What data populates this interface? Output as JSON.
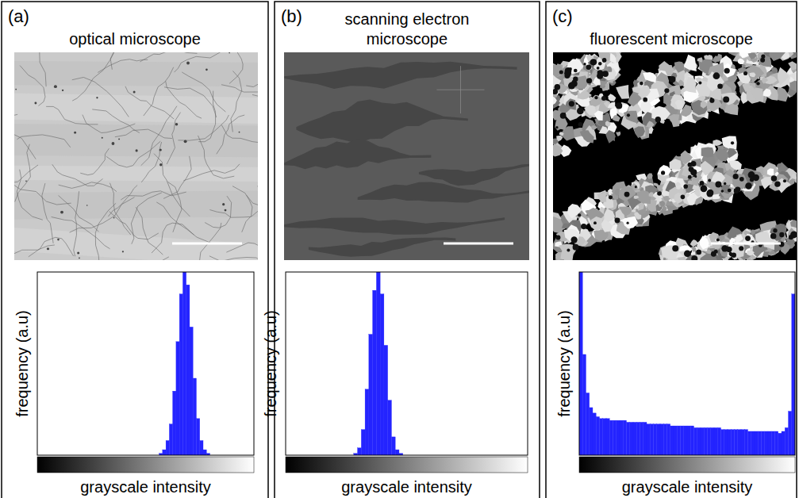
{
  "chart_data": [
    {
      "type": "histogram",
      "panel": "(a)",
      "title": "optical microscope",
      "xlabel": "grayscale intensity",
      "ylabel": "frequency (a.u)",
      "bins": [
        0,
        4,
        8,
        12,
        16,
        20,
        24,
        28,
        32,
        36,
        40,
        44,
        48,
        52,
        56,
        60,
        64,
        68,
        72,
        76,
        80,
        84,
        88,
        92,
        96,
        100,
        104,
        108,
        112,
        116,
        120,
        124,
        128,
        132,
        136,
        140,
        144,
        148,
        152,
        156,
        160,
        164,
        168,
        172,
        176,
        180,
        184,
        188,
        192,
        196,
        200,
        204,
        208,
        212,
        216,
        220,
        224,
        228,
        232,
        236,
        240,
        244,
        248,
        252,
        256
      ],
      "counts": [
        0,
        0,
        0,
        0,
        0,
        0,
        0,
        0,
        0,
        0,
        0,
        0,
        0,
        0,
        0,
        0,
        0,
        0,
        0,
        0,
        0,
        0,
        0,
        0,
        0,
        0,
        0,
        0,
        0,
        0,
        0,
        0,
        0,
        0,
        0,
        0,
        0.01,
        0.03,
        0.08,
        0.17,
        0.35,
        0.62,
        0.88,
        1.0,
        0.93,
        0.7,
        0.42,
        0.2,
        0.08,
        0.03,
        0.01,
        0,
        0,
        0,
        0,
        0,
        0,
        0,
        0,
        0,
        0,
        0,
        0,
        0
      ],
      "color": "#2424ff",
      "xlim": [
        0,
        256
      ],
      "ylim": [
        0,
        1
      ],
      "tick_labels": false
    },
    {
      "type": "histogram",
      "panel": "(b)",
      "title": "scanning electron microscope",
      "xlabel": "grayscale intensity",
      "ylabel": "frequency (a.u)",
      "bins": [
        0,
        4,
        8,
        12,
        16,
        20,
        24,
        28,
        32,
        36,
        40,
        44,
        48,
        52,
        56,
        60,
        64,
        68,
        72,
        76,
        80,
        84,
        88,
        92,
        96,
        100,
        104,
        108,
        112,
        116,
        120,
        124,
        128,
        132,
        136,
        140,
        144,
        148,
        152,
        156,
        160,
        164,
        168,
        172,
        176,
        180,
        184,
        188,
        192,
        196,
        200,
        204,
        208,
        212,
        216,
        220,
        224,
        228,
        232,
        236,
        240,
        244,
        248,
        252,
        256
      ],
      "counts": [
        0,
        0,
        0,
        0,
        0,
        0,
        0,
        0,
        0,
        0,
        0,
        0,
        0,
        0,
        0,
        0,
        0,
        0,
        0.01,
        0.04,
        0.14,
        0.36,
        0.66,
        0.9,
        1.0,
        0.88,
        0.6,
        0.3,
        0.1,
        0.03,
        0.01,
        0,
        0,
        0,
        0,
        0,
        0,
        0,
        0,
        0,
        0,
        0,
        0,
        0,
        0,
        0,
        0,
        0,
        0,
        0,
        0,
        0,
        0,
        0,
        0,
        0,
        0,
        0,
        0,
        0,
        0,
        0,
        0,
        0
      ],
      "color": "#2424ff",
      "xlim": [
        0,
        256
      ],
      "ylim": [
        0,
        1
      ],
      "tick_labels": false
    },
    {
      "type": "histogram",
      "panel": "(c)",
      "title": "fluorescent microscope",
      "xlabel": "grayscale intensity",
      "ylabel": "frequency (a.u)",
      "bins": [
        0,
        4,
        8,
        12,
        16,
        20,
        24,
        28,
        32,
        36,
        40,
        44,
        48,
        52,
        56,
        60,
        64,
        68,
        72,
        76,
        80,
        84,
        88,
        92,
        96,
        100,
        104,
        108,
        112,
        116,
        120,
        124,
        128,
        132,
        136,
        140,
        144,
        148,
        152,
        156,
        160,
        164,
        168,
        172,
        176,
        180,
        184,
        188,
        192,
        196,
        200,
        204,
        208,
        212,
        216,
        220,
        224,
        228,
        232,
        236,
        240,
        244,
        248,
        252,
        256
      ],
      "counts": [
        1.0,
        0.55,
        0.34,
        0.26,
        0.23,
        0.21,
        0.2,
        0.2,
        0.2,
        0.19,
        0.19,
        0.19,
        0.19,
        0.19,
        0.18,
        0.18,
        0.18,
        0.18,
        0.18,
        0.18,
        0.17,
        0.17,
        0.17,
        0.17,
        0.17,
        0.17,
        0.17,
        0.16,
        0.16,
        0.16,
        0.16,
        0.16,
        0.16,
        0.16,
        0.15,
        0.15,
        0.15,
        0.15,
        0.15,
        0.15,
        0.15,
        0.15,
        0.14,
        0.14,
        0.14,
        0.14,
        0.14,
        0.14,
        0.14,
        0.14,
        0.13,
        0.13,
        0.13,
        0.13,
        0.13,
        0.13,
        0.13,
        0.13,
        0.13,
        0.12,
        0.13,
        0.15,
        0.24,
        0.88
      ],
      "color": "#2424ff",
      "xlim": [
        0,
        256
      ],
      "ylim": [
        0,
        1
      ],
      "tick_labels": false
    }
  ]
}
